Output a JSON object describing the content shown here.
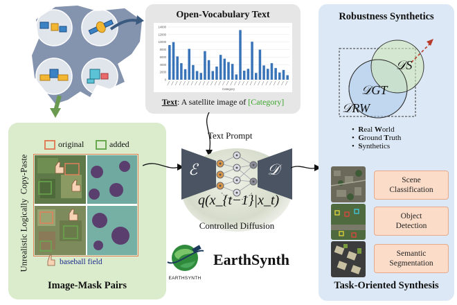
{
  "open_vocab": {
    "title": "Open-Vocabulary Text",
    "caption_label": "Text",
    "caption_text": ": A satellite image of ",
    "caption_category": "[Category]",
    "chart_ylabels": [
      "14000",
      "12000",
      "10000",
      "8000",
      "6000",
      "4000",
      "2000",
      "0"
    ],
    "chart_xlabel": "Category"
  },
  "chart_data": {
    "type": "bar",
    "xlabel": "Category",
    "ylabel": "",
    "ylim": [
      0,
      14000
    ],
    "values": [
      9200,
      10000,
      6200,
      4400,
      2800,
      8200,
      3900,
      2300,
      1800,
      7600,
      5200,
      2300,
      3500,
      6600,
      5600,
      4700,
      4200,
      1400,
      13200,
      2400,
      2900,
      10100,
      1800,
      8000,
      3800,
      2900,
      4400,
      3100,
      1900,
      2600,
      1200
    ]
  },
  "image_mask": {
    "title": "Image-Mask Pairs",
    "legend_original": "original",
    "legend_added": "added",
    "side_label": "Unrealistic Logically  Copy-Paste",
    "caption": "baseball field"
  },
  "diffusion": {
    "text_prompt": "Text Prompt",
    "encoder": "ℰ",
    "decoder": "𝒟",
    "formula": "q(x_{t−1}|x_t)",
    "caption": "Controlled Diffusion"
  },
  "brand": {
    "name": "EarthSynth",
    "logo_text": "EARTHSYNTH"
  },
  "robustness": {
    "title": "Robustness Synthetics",
    "d_s": "𝒟S",
    "d_gt": "𝒟GT",
    "d_rw": "𝒟RW",
    "legend": [
      {
        "bold": "R",
        "rest": "eal ",
        "bold2": "W",
        "rest2": "orld"
      },
      {
        "bold": "G",
        "rest": "round ",
        "bold2": "T",
        "rest2": "ruth"
      },
      {
        "bold": "S",
        "rest": "ynthetics",
        "bold2": "",
        "rest2": ""
      }
    ]
  },
  "tasks": {
    "title": "Task-Oriented Synthesis",
    "items": [
      "Scene\nClassification",
      "Object\nDetection",
      "Semantic\nSegmentation"
    ]
  },
  "colors": {
    "green_panel": "#dbeccd",
    "blue_panel": "#dce8f5",
    "bar": "#3a74b8",
    "task_bg": "#fbdcc8",
    "caption_category": "#3aa62a"
  }
}
